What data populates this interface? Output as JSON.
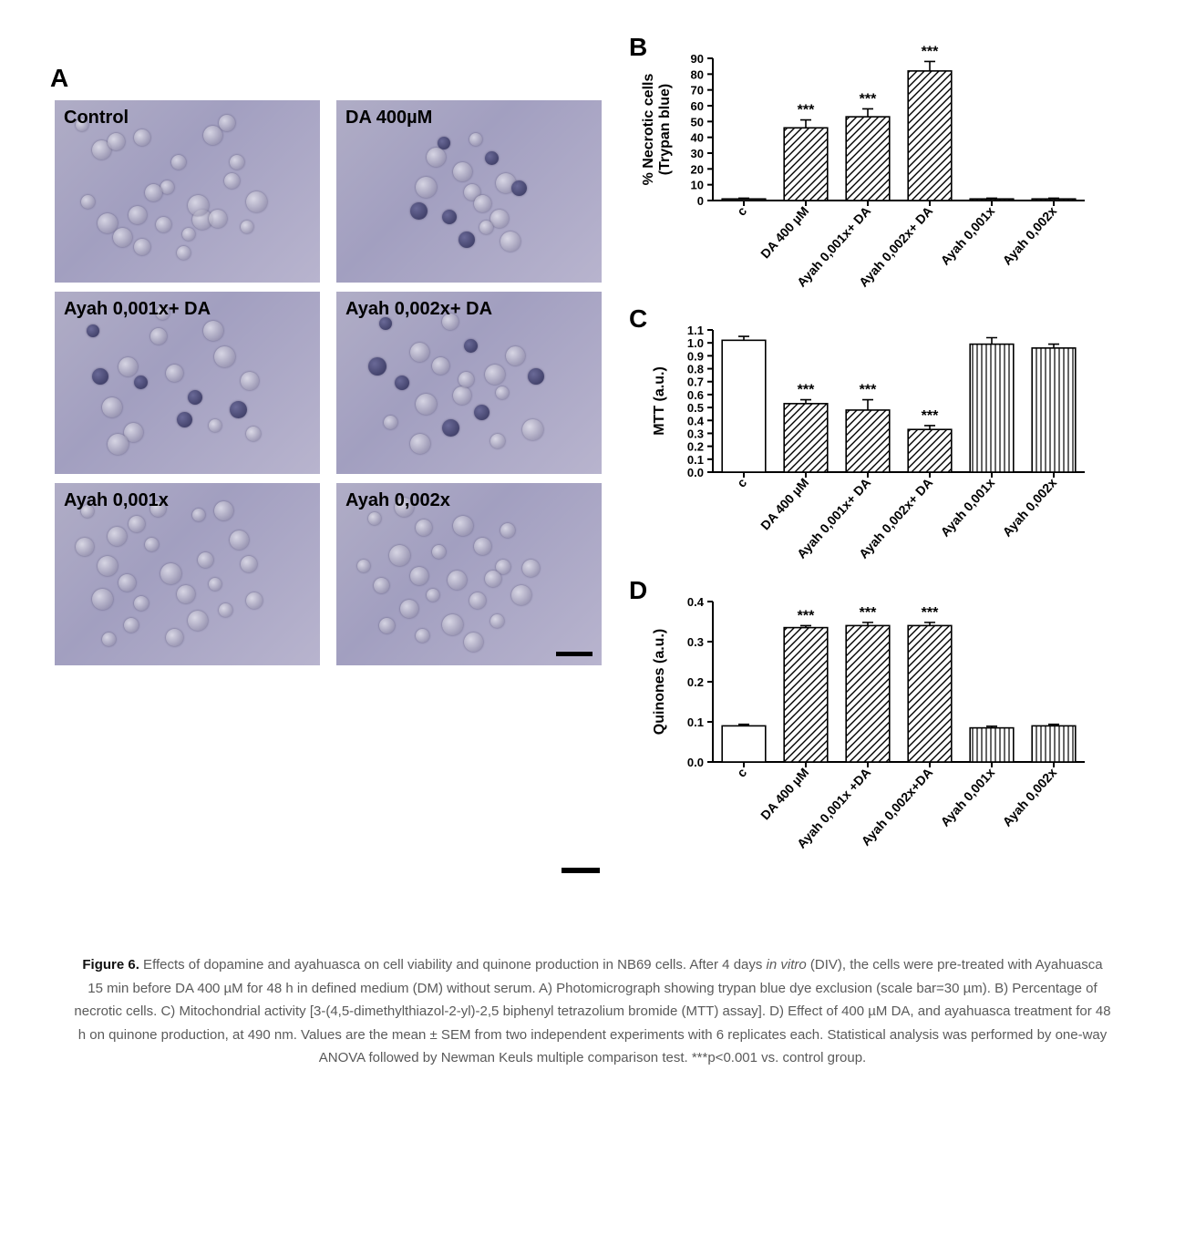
{
  "panel_a": {
    "letter": "A",
    "micrographs": [
      {
        "label": "Control",
        "dark_cells": false
      },
      {
        "label": "DA 400µM",
        "dark_cells": true
      },
      {
        "label": "Ayah 0,001x+ DA",
        "dark_cells": true
      },
      {
        "label": "Ayah 0,002x+ DA",
        "dark_cells": true
      },
      {
        "label": "Ayah 0,001x",
        "dark_cells": false
      },
      {
        "label": "Ayah 0,002x",
        "dark_cells": false
      }
    ],
    "bg_colors": [
      "#b0adc6",
      "#a29fc0",
      "#b8b4ce"
    ]
  },
  "x_categories": [
    "c",
    "DA 400 µM",
    "Ayah 0,001x+ DA",
    "Ayah 0,002x+ DA",
    "Ayah 0,001x",
    "Ayah 0,002x"
  ],
  "x_categories_d": [
    "c",
    "DA 400 µM",
    "Ayah 0,001x +DA",
    "Ayah 0,002x+DA",
    "Ayah 0,001x",
    "Ayah 0,002x"
  ],
  "panel_b": {
    "letter": "B",
    "ylabel_line1": "% Necrotic cells",
    "ylabel_line2": "(Trypan blue)",
    "ylim": [
      0,
      90
    ],
    "ytick_step": 10,
    "values": [
      1,
      46,
      53,
      82,
      1,
      1
    ],
    "errors": [
      0.5,
      5,
      5,
      6,
      0.5,
      0.5
    ],
    "sig": [
      "",
      "***",
      "***",
      "***",
      "",
      ""
    ],
    "fill_pattern": [
      "open",
      "hatch45",
      "hatch45",
      "hatch45",
      "vert",
      "vert"
    ],
    "bar_border": "#000000",
    "bg": "#ffffff",
    "axis_fontsize": 14,
    "tick_fontsize": 13,
    "bar_width": 0.7
  },
  "panel_c": {
    "letter": "C",
    "ylabel": "MTT (a.u.)",
    "ylim": [
      0.0,
      1.1
    ],
    "ytick_step": 0.1,
    "values": [
      1.02,
      0.53,
      0.48,
      0.33,
      0.99,
      0.96
    ],
    "errors": [
      0.03,
      0.03,
      0.08,
      0.03,
      0.05,
      0.03
    ],
    "sig": [
      "",
      "***",
      "***",
      "***",
      "",
      ""
    ],
    "fill_pattern": [
      "open",
      "hatch45",
      "hatch45",
      "hatch45",
      "vert",
      "vert"
    ],
    "bar_border": "#000000",
    "bg": "#ffffff",
    "axis_fontsize": 14,
    "tick_fontsize": 13,
    "bar_width": 0.7
  },
  "panel_d": {
    "letter": "D",
    "ylabel": "Quinones (a.u.)",
    "ylim": [
      0.0,
      0.4
    ],
    "ytick_step": 0.1,
    "values": [
      0.09,
      0.335,
      0.34,
      0.34,
      0.085,
      0.09
    ],
    "errors": [
      0.004,
      0.005,
      0.008,
      0.008,
      0.004,
      0.004
    ],
    "sig": [
      "",
      "***",
      "***",
      "***",
      "",
      ""
    ],
    "fill_pattern": [
      "open",
      "hatch45",
      "hatch45",
      "hatch45",
      "vert",
      "vert"
    ],
    "bar_border": "#000000",
    "bg": "#ffffff",
    "axis_fontsize": 14,
    "tick_fontsize": 13,
    "bar_width": 0.7
  },
  "colors": {
    "axis": "#000000",
    "sig_text": "#000000",
    "caption_text": "#5a5a5a",
    "caption_bold": "#111111"
  },
  "caption": {
    "title": "Figure 6.",
    "body_parts": [
      " Effects of dopamine and ayahuasca on cell viability and quinone production in NB69 cells. After 4 days ",
      "in vitro",
      " (DIV), the cells were pre-treated with Ayahuasca 15 min before DA 400 µM for 48 h in defined medium (DM) without serum. A) Photomicrograph showing trypan blue dye exclusion (scale bar=30 µm). B) Percentage of necrotic cells. C) Mitochondrial activity [3-(4,5-dimethylthiazol-2-yl)-2,5 biphenyl tetrazolium bromide (MTT) assay]. D) Effect of 400 µM DA, and ayahuasca treatment for 48 h on quinone production, at 490 nm. Values are the mean ± SEM from two independent experiments with 6 replicates each. Statistical analysis was performed by one-way ANOVA followed by Newman Keuls multiple comparison test. ***p<0.001 vs. control group."
    ]
  }
}
